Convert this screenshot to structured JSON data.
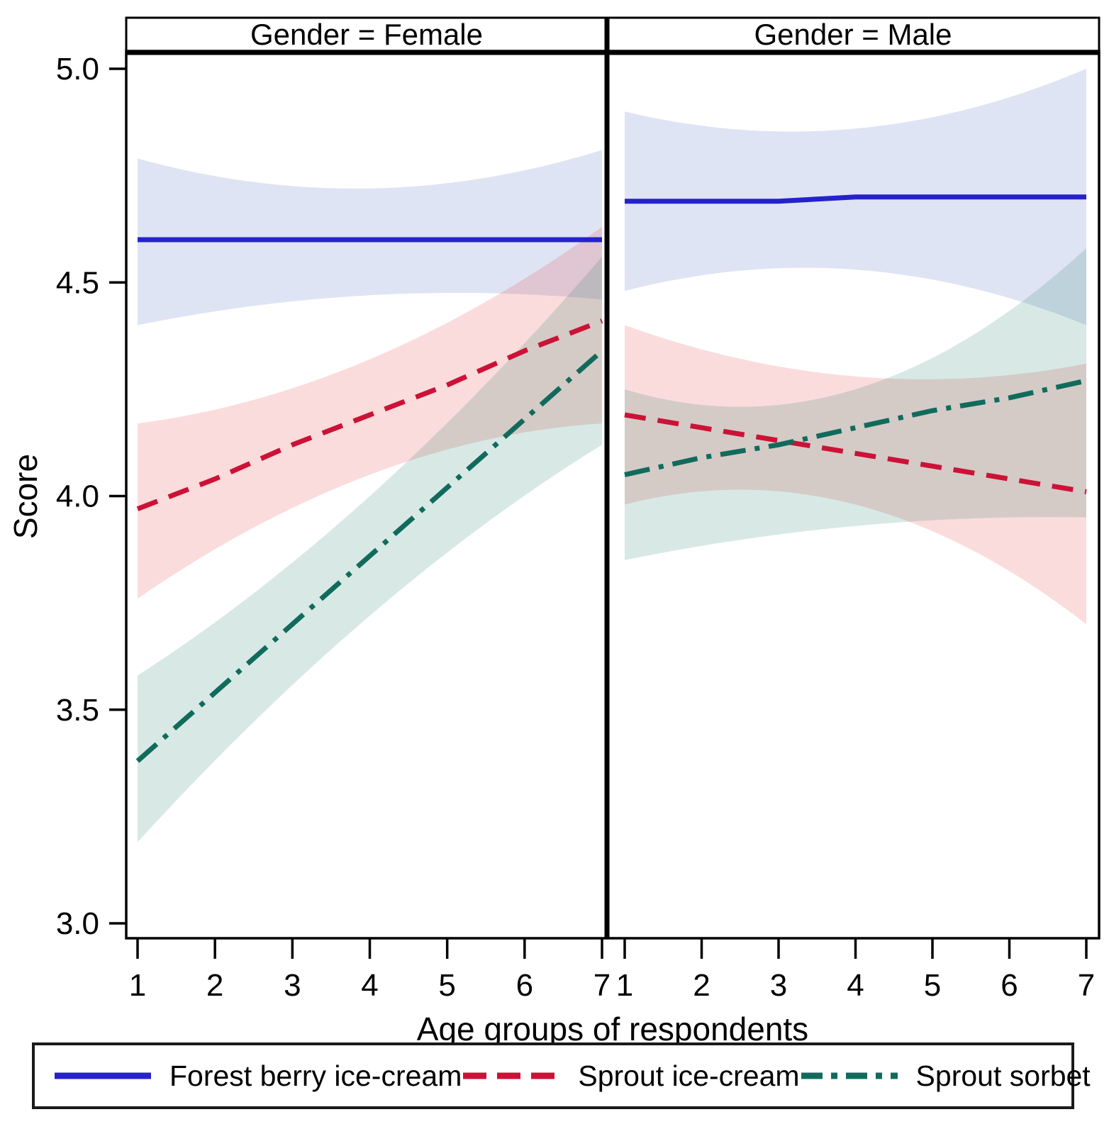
{
  "figure": {
    "background": "#ffffff",
    "text_color": "#000000",
    "frame_color": "#000000"
  },
  "panel_headers": [
    {
      "label": "Gender = Female"
    },
    {
      "label": "Gender = Male"
    }
  ],
  "y_axis": {
    "title": "Score",
    "tick_labels": [
      "5.0",
      "4.5",
      "4.0",
      "3.5",
      "3.0"
    ],
    "tick_values": [
      5.0,
      4.5,
      4.0,
      3.5,
      3.0
    ]
  },
  "x_axis": {
    "title": "Age groups of respondents",
    "tick_labels": [
      "1",
      "2",
      "3",
      "4",
      "5",
      "6",
      "7"
    ],
    "tick_values": [
      1,
      2,
      3,
      4,
      5,
      6,
      7
    ]
  },
  "legend": {
    "items": [
      {
        "label": "Forest berry ice-cream",
        "color": "#2522cb",
        "dash": "solid"
      },
      {
        "label": "Sprout ice-cream",
        "color": "#cc1236",
        "dash": "dashed"
      },
      {
        "label": "Sprout sorbet",
        "color": "#116b5c",
        "dash": "dash-dot"
      }
    ]
  },
  "chart_data": {
    "type": "line",
    "facet_by": "Gender",
    "title": "",
    "xlabel": "Age groups of respondents",
    "ylabel": "Score",
    "x": [
      1,
      2,
      3,
      4,
      5,
      6,
      7
    ],
    "xlim": [
      1,
      7
    ],
    "ylim": [
      2.97,
      5.04
    ],
    "yticks": [
      3.0,
      3.5,
      4.0,
      4.5,
      5.0
    ],
    "grid": false,
    "legend_position": "bottom",
    "confidence_bands": true,
    "facets": [
      {
        "label": "Gender = Female",
        "series": [
          {
            "name": "Forest berry ice-cream",
            "color": "#2522cb",
            "band_color": "rgba(55,86,186,0.16)",
            "dash": "solid",
            "values": [
              4.6,
              4.6,
              4.6,
              4.6,
              4.6,
              4.6,
              4.6
            ],
            "ci": {
              "x": [
                1,
                4,
                7
              ],
              "lower": [
                4.4,
                4.47,
                4.46
              ],
              "upper": [
                4.79,
                4.72,
                4.81
              ]
            }
          },
          {
            "name": "Sprout ice-cream",
            "color": "#cc1236",
            "band_color": "rgba(230,36,36,0.16)",
            "dash": "dashed",
            "values": [
              3.97,
              4.04,
              4.12,
              4.19,
              4.26,
              4.34,
              4.41
            ],
            "ci": {
              "x": [
                1,
                4,
                7
              ],
              "lower": [
                3.76,
                4.05,
                4.17
              ],
              "upper": [
                4.17,
                4.32,
                4.63
              ]
            }
          },
          {
            "name": "Sprout sorbet",
            "color": "#116b5c",
            "band_color": "rgba(11,118,93,0.16)",
            "dash": "dash-dot",
            "values": [
              3.38,
              3.54,
              3.7,
              3.86,
              4.02,
              4.18,
              4.34
            ],
            "ci": {
              "x": [
                1,
                4,
                7
              ],
              "lower": [
                3.19,
                3.72,
                4.12
              ],
              "upper": [
                3.58,
                4.0,
                4.56
              ]
            }
          }
        ]
      },
      {
        "label": "Gender = Male",
        "series": [
          {
            "name": "Forest berry ice-cream",
            "color": "#2522cb",
            "band_color": "rgba(55,86,186,0.16)",
            "dash": "solid",
            "values": [
              4.69,
              4.69,
              4.69,
              4.7,
              4.7,
              4.7,
              4.7
            ],
            "ci": {
              "x": [
                1,
                4,
                7
              ],
              "lower": [
                4.48,
                4.53,
                4.4
              ],
              "upper": [
                4.9,
                4.86,
                5.0
              ]
            }
          },
          {
            "name": "Sprout ice-cream",
            "color": "#cc1236",
            "band_color": "rgba(230,36,36,0.16)",
            "dash": "dashed",
            "values": [
              4.19,
              4.16,
              4.13,
              4.1,
              4.07,
              4.04,
              4.01
            ],
            "ci": {
              "x": [
                1,
                4,
                7
              ],
              "lower": [
                3.98,
                3.98,
                3.7
              ],
              "upper": [
                4.4,
                4.28,
                4.31
              ]
            }
          },
          {
            "name": "Sprout sorbet",
            "color": "#116b5c",
            "band_color": "rgba(11,118,93,0.16)",
            "dash": "dash-dot",
            "values": [
              4.05,
              4.09,
              4.12,
              4.16,
              4.2,
              4.23,
              4.27
            ],
            "ci": {
              "x": [
                1,
                4,
                7
              ],
              "lower": [
                3.85,
                3.93,
                3.95
              ],
              "upper": [
                4.25,
                4.25,
                4.58
              ]
            }
          }
        ]
      }
    ]
  }
}
